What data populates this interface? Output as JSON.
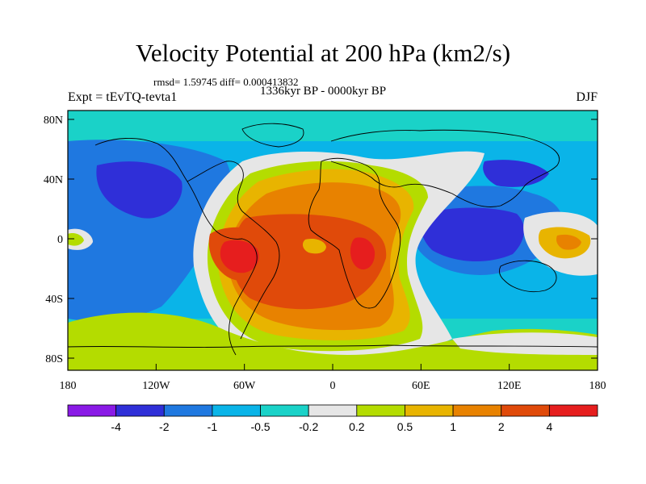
{
  "header": {
    "title": "Velocity Potential at 200 hPa (km2/s)",
    "stats": "rmsd= 1.59745 diff= 0.000413832",
    "period": "1336kyr BP - 0000kyr BP",
    "experiment": "Expt = tEvTQ-tevta1",
    "season": "DJF"
  },
  "axes": {
    "lat_labels": [
      "80N",
      "40N",
      "0",
      "40S",
      "80S"
    ],
    "lon_labels": [
      "180",
      "120W",
      "60W",
      "0",
      "60E",
      "120E",
      "180"
    ]
  },
  "colorbar": {
    "colors": [
      "#8a1ae6",
      "#2f2fd8",
      "#1f78e0",
      "#0ab4e8",
      "#1ad2c8",
      "#e6e6e6",
      "#b4dc00",
      "#e8b400",
      "#e88200",
      "#e04a0a",
      "#e61e1e"
    ],
    "labels": [
      "-4",
      "-2",
      "-1",
      "-0.5",
      "-0.2",
      "0.2",
      "0.5",
      "1",
      "2",
      "4"
    ]
  },
  "map": {
    "projection": "cylindrical-equidistant",
    "grid": false,
    "continents": "outlined"
  }
}
